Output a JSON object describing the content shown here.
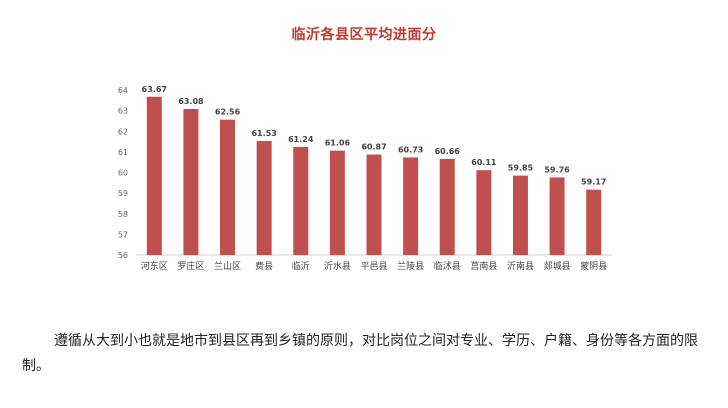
{
  "chart_data": {
    "type": "bar",
    "title": "临沂各县区平均进面分",
    "categories": [
      "河东区",
      "罗庄区",
      "兰山区",
      "费县",
      "临沂",
      "沂水县",
      "平邑县",
      "兰陵县",
      "临沭县",
      "莒南县",
      "沂南县",
      "郯城县",
      "蒙阴县"
    ],
    "values": [
      63.67,
      63.08,
      62.56,
      61.53,
      61.24,
      61.06,
      60.87,
      60.73,
      60.66,
      60.11,
      59.85,
      59.76,
      59.17
    ],
    "value_labels": [
      "63.67",
      "63.08",
      "62.56",
      "61.53",
      "61.24",
      "61.06",
      "60.87",
      "60.73",
      "60.66",
      "60.11",
      "59.85",
      "59.76",
      "59.17"
    ],
    "ylim": [
      56,
      64
    ],
    "yticks": [
      "56",
      "57",
      "58",
      "59",
      "60",
      "61",
      "62",
      "63",
      "64"
    ],
    "xlabel": "",
    "ylabel": "",
    "grid": false,
    "bar_color": "#c0504d"
  },
  "article": {
    "paragraph": "遵循从大到小也就是地市到县区再到乡镇的原则，对比岗位之间对专业、学历、户籍、身份等各方面的限制。"
  }
}
